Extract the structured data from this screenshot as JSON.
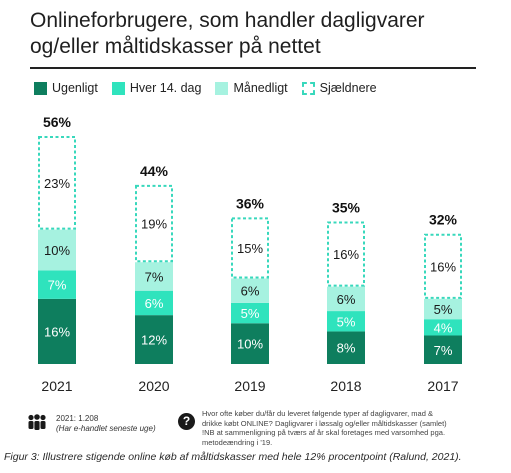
{
  "title": "Onlineforbrugere, som handler dagligvarer og/eller måltidskasser på nettet",
  "legend": [
    {
      "label": "Ugenligt",
      "color": "#0e7e5e",
      "style": "solid"
    },
    {
      "label": "Hver 14. dag",
      "color": "#2fe3bd",
      "style": "solid"
    },
    {
      "label": "Månedligt",
      "color": "#a6f2e0",
      "style": "solid"
    },
    {
      "label": "Sjældnere",
      "color": "#38d8bc",
      "style": "dashed"
    }
  ],
  "chart_data": {
    "type": "bar",
    "stacked": true,
    "categories": [
      "2021",
      "2020",
      "2019",
      "2018",
      "2017"
    ],
    "series": [
      {
        "name": "Ugenligt",
        "values": [
          16,
          12,
          10,
          8,
          7
        ]
      },
      {
        "name": "Hver 14. dag",
        "values": [
          7,
          6,
          5,
          5,
          4
        ]
      },
      {
        "name": "Månedligt",
        "values": [
          10,
          7,
          6,
          6,
          5
        ]
      },
      {
        "name": "Sjældnere",
        "values": [
          23,
          19,
          15,
          16,
          16
        ]
      }
    ],
    "totals": [
      "56%",
      "44%",
      "36%",
      "35%",
      "32%"
    ],
    "unit": "%",
    "ylim": [
      0,
      56
    ],
    "grid": false,
    "legend_position": "top-left"
  },
  "footer": {
    "sample": "2021: 1.208",
    "sample_note": "(Har e-handlet seneste uge)",
    "question_lines": [
      "Hvor ofte køber du/får du leveret følgende typer af dagligvarer, mad &",
      "drikke købt ONLINE? Dagligvarer i løssalg og/eller måltidskasser (samlet)",
      "!NB at sammenligning på tværs af år skal foretages med varsomhed pga.",
      "metodeændring i '19."
    ],
    "question_icon": "?"
  },
  "caption": "Figur 3: Illustrere stigende online køb af måltidskasser med hele 12% procentpoint (Ralund, 2021)."
}
